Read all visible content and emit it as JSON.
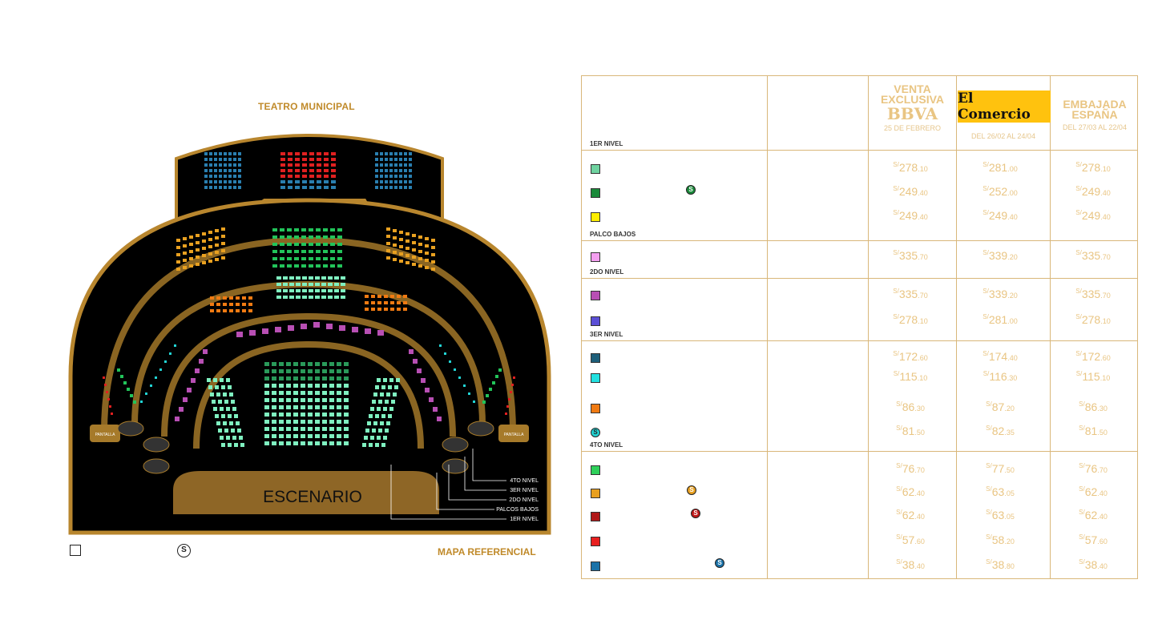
{
  "map": {
    "title": "TEATRO MUNICIPAL",
    "reference": "MAPA REFERENCIAL",
    "stage": "ESCENARIO",
    "screen_label": "PANTALLA",
    "levels": [
      "4TO NIVEL",
      "3ER NIVEL",
      "2DO NIVEL",
      "PALCOS BAJOS",
      "1ER NIVEL"
    ],
    "legend_s": "S"
  },
  "table": {
    "headers": {
      "bbva_line1": "VENTA",
      "bbva_line2": "EXCLUSIVA",
      "bbva_line3": "BBVA",
      "bbva_date": "25 DE FEBRERO",
      "comercio": "El Comercio",
      "comercio_date": "DEL 26/02 AL 24/04",
      "embajada_line1": "EMBAJADA",
      "embajada_line2": "ESPAÑA",
      "embajada_date": "DEL 27/03 AL 22/04"
    },
    "currency": "S/",
    "sections": [
      {
        "label": "1ER NIVEL",
        "rows": [
          {
            "color": "#6fd3a0",
            "s": false,
            "p1": [
              "278",
              ".10"
            ],
            "p2": [
              "281",
              ".00"
            ],
            "p3": [
              "278",
              ".10"
            ]
          },
          {
            "color": "#1a8a3a",
            "s": true,
            "s_color": "#1a8a3a",
            "p1": [
              "249",
              ".40"
            ],
            "p2": [
              "252",
              ".00"
            ],
            "p3": [
              "249",
              ".40"
            ]
          },
          {
            "color": "#ffee00",
            "s": false,
            "p1": [
              "249",
              ".40"
            ],
            "p2": [
              "249",
              ".40"
            ],
            "p3": [
              "249",
              ".40"
            ]
          }
        ]
      },
      {
        "label": "PALCO BAJOS",
        "rows": [
          {
            "color": "#f49ff0",
            "s": false,
            "p1": [
              "335",
              ".70"
            ],
            "p2": [
              "339",
              ".20"
            ],
            "p3": [
              "335",
              ".70"
            ]
          }
        ]
      },
      {
        "label": "2DO NIVEL",
        "rows": [
          {
            "color": "#b84fb4",
            "s": false,
            "p1": [
              "335",
              ".70"
            ],
            "p2": [
              "339",
              ".20"
            ],
            "p3": [
              "335",
              ".70"
            ]
          },
          {
            "color": "#5b4fd6",
            "s": false,
            "p1": [
              "278",
              ".10"
            ],
            "p2": [
              "281",
              ".00"
            ],
            "p3": [
              "278",
              ".10"
            ]
          }
        ]
      },
      {
        "label": "3ER NIVEL",
        "rows": [
          {
            "color": "#1e5f7a",
            "s": false,
            "p1": [
              "172",
              ".60"
            ],
            "p2": [
              "174",
              ".40"
            ],
            "p3": [
              "172",
              ".60"
            ]
          },
          {
            "color": "#22e0e0",
            "s": false,
            "p1": [
              "115",
              ".10"
            ],
            "p2": [
              "116",
              ".30"
            ],
            "p3": [
              "115",
              ".10"
            ]
          },
          {
            "color": "#f07a12",
            "s": false,
            "p1": [
              "86",
              ".30"
            ],
            "p2": [
              "87",
              ".20"
            ],
            "p3": [
              "86",
              ".30"
            ]
          },
          {
            "color": "#22d4d4",
            "s": "only",
            "p1": [
              "81",
              ".50"
            ],
            "p2": [
              "82",
              ".35"
            ],
            "p3": [
              "81",
              ".50"
            ]
          }
        ]
      },
      {
        "label": "4TO NIVEL",
        "rows": [
          {
            "color": "#2ed05a",
            "s": false,
            "p1": [
              "76",
              ".70"
            ],
            "p2": [
              "77",
              ".50"
            ],
            "p3": [
              "76",
              ".70"
            ]
          },
          {
            "color": "#e8a020",
            "s": true,
            "s_color": "#e8a020",
            "p1": [
              "62",
              ".40"
            ],
            "p2": [
              "63",
              ".05"
            ],
            "p3": [
              "62",
              ".40"
            ]
          },
          {
            "color": "#b01818",
            "s": true,
            "s_color": "#c01818",
            "p1": [
              "62",
              ".40"
            ],
            "p2": [
              "63",
              ".05"
            ],
            "p3": [
              "62",
              ".40"
            ]
          },
          {
            "color": "#e82020",
            "s": false,
            "p1": [
              "57",
              ".60"
            ],
            "p2": [
              "58",
              ".20"
            ],
            "p3": [
              "57",
              ".60"
            ]
          },
          {
            "color": "#1a72a8",
            "s": true,
            "s_color": "#1a72a8",
            "p1": [
              "38",
              ".40"
            ],
            "p2": [
              "38",
              ".80"
            ],
            "p3": [
              "38",
              ".40"
            ]
          }
        ]
      }
    ]
  }
}
